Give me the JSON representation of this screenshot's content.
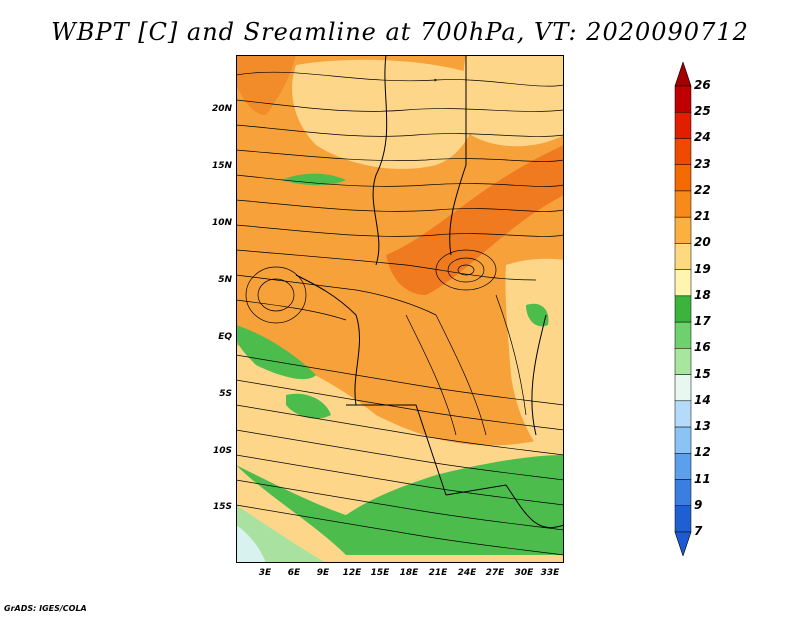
{
  "title": "WBPT [C] and Sreamline at 700hPa, VT: 2020090712",
  "credit": "GrADS: IGES/COLA",
  "y_axis_labels": [
    "20N",
    "15N",
    "10N",
    "5N",
    "EQ",
    "5S",
    "10S",
    "15S"
  ],
  "x_axis_labels": [
    "3E",
    "6E",
    "9E",
    "12E",
    "15E",
    "18E",
    "21E",
    "24E",
    "27E",
    "30E",
    "33E"
  ],
  "colorbar": {
    "labels": [
      "26",
      "25",
      "24",
      "23",
      "22",
      "21",
      "20",
      "19",
      "18",
      "17",
      "16",
      "15",
      "14",
      "13",
      "12",
      "11",
      "9",
      "7"
    ],
    "colors": [
      "#a50000",
      "#c00000",
      "#e11f00",
      "#f04a00",
      "#f26a00",
      "#f78a1a",
      "#fbb040",
      "#fdda80",
      "#fff4b0",
      "#3cb43c",
      "#6dd16d",
      "#a8e6a0",
      "#e6f8f0",
      "#b4dcfa",
      "#8cc3f5",
      "#5aa0ec",
      "#3a7ee0",
      "#1e60d2",
      "#1e5ad2"
    ]
  },
  "map": {
    "dominant_field": "WBPT 19-23 C over central Africa; cooler 15-18 C in south and southwest",
    "colors": {
      "warm": "#f7a13a",
      "hot": "#f07a20",
      "mild": "#fdd68a",
      "cool_green": "#4cbd4c",
      "pale_green": "#a9e2a0",
      "cyan": "#d8f2f0"
    }
  }
}
